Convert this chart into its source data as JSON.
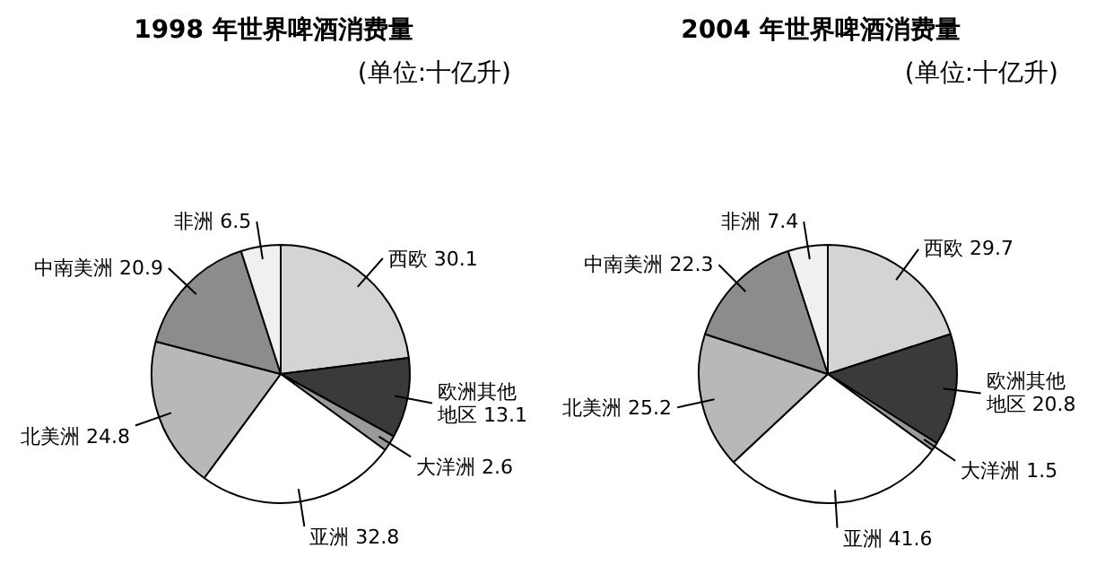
{
  "chart_data": [
    {
      "type": "pie",
      "title": "1998 年世界啤酒消费量",
      "subtitle": "(单位:十亿升)",
      "categories": [
        "西欧",
        "欧洲其他地区",
        "大洋洲",
        "亚洲",
        "北美洲",
        "中南美洲",
        "非洲"
      ],
      "values": [
        30.1,
        13.1,
        2.6,
        32.8,
        24.8,
        20.9,
        6.5
      ],
      "colors": [
        "#d4d4d4",
        "#3a3a3a",
        "#9a9a9a",
        "#ffffff",
        "#b8b8b8",
        "#8c8c8c",
        "#f0f0f0"
      ],
      "data_labels": true
    },
    {
      "type": "pie",
      "title": "2004 年世界啤酒消费量",
      "subtitle": "(单位:十亿升)",
      "categories": [
        "西欧",
        "欧洲其他地区",
        "大洋洲",
        "亚洲",
        "北美洲",
        "中南美洲",
        "非洲"
      ],
      "values": [
        29.7,
        20.8,
        1.5,
        41.6,
        25.2,
        22.3,
        7.4
      ],
      "colors": [
        "#d4d4d4",
        "#3a3a3a",
        "#9a9a9a",
        "#ffffff",
        "#b8b8b8",
        "#8c8c8c",
        "#f0f0f0"
      ],
      "data_labels": true
    }
  ]
}
